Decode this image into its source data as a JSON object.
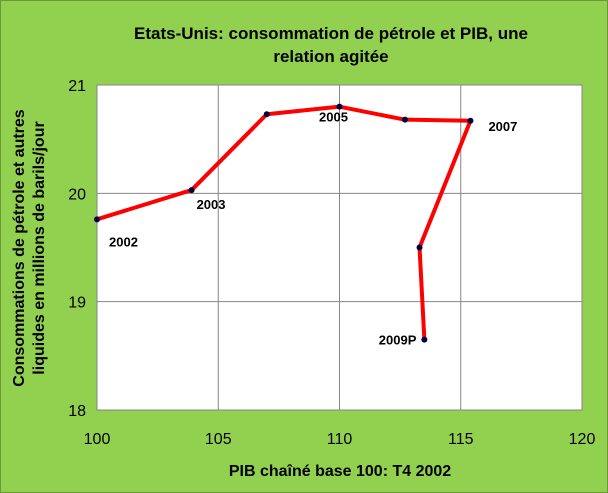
{
  "chart_data": {
    "type": "line",
    "title_line1": "Etats-Unis: consommation de pétrole et PIB, une",
    "title_line2": "relation agitée",
    "xlabel": "PIB chaîné base 100: T4 2002",
    "ylabel_line1": "Consommations de pétrole et autres",
    "ylabel_line2": "liquides en millions de barils/jour",
    "xlim": [
      100,
      120
    ],
    "ylim": [
      18,
      21
    ],
    "x_ticks": [
      100,
      105,
      110,
      115,
      120
    ],
    "y_ticks": [
      18,
      19,
      20,
      21
    ],
    "x_tick_labels": [
      "100",
      "105",
      "110",
      "115",
      "120"
    ],
    "y_tick_labels": [
      "18",
      "19",
      "20",
      "21"
    ],
    "grid": true,
    "line_color": "#FF0000",
    "marker_color": "#000040",
    "plot_background": "#FFFFFF",
    "background": "#92D050",
    "points": [
      {
        "x": 100.0,
        "y": 19.76,
        "label": "2002"
      },
      {
        "x": 103.9,
        "y": 20.03,
        "label": "2003"
      },
      {
        "x": 107.0,
        "y": 20.73,
        "label": ""
      },
      {
        "x": 110.0,
        "y": 20.8,
        "label": "2005"
      },
      {
        "x": 112.7,
        "y": 20.68,
        "label": ""
      },
      {
        "x": 115.4,
        "y": 20.67,
        "label": "2007"
      },
      {
        "x": 113.3,
        "y": 19.5,
        "label": ""
      },
      {
        "x": 113.5,
        "y": 18.65,
        "label": "2009P"
      }
    ]
  }
}
